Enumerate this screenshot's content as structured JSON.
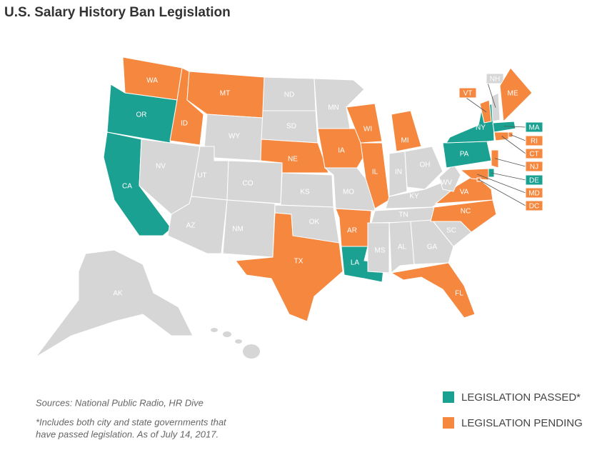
{
  "title": "U.S. Salary History Ban Legislation",
  "map": {
    "states": [
      {
        "label": "WA",
        "color": "#f5873f"
      },
      {
        "label": "OR",
        "color": "#1aa192"
      },
      {
        "label": "CA",
        "color": "#1aa192"
      },
      {
        "label": "ID",
        "color": "#f5873f"
      },
      {
        "label": "NV",
        "color": "#d6d6d6"
      },
      {
        "label": "MT",
        "color": "#f5873f"
      },
      {
        "label": "WY",
        "color": "#d6d6d6"
      },
      {
        "label": "UT",
        "color": "#d6d6d6"
      },
      {
        "label": "CO",
        "color": "#d6d6d6"
      },
      {
        "label": "AZ",
        "color": "#d6d6d6"
      },
      {
        "label": "NM",
        "color": "#d6d6d6"
      },
      {
        "label": "ND",
        "color": "#d6d6d6"
      },
      {
        "label": "SD",
        "color": "#d6d6d6"
      },
      {
        "label": "NE",
        "color": "#f5873f"
      },
      {
        "label": "KS",
        "color": "#d6d6d6"
      },
      {
        "label": "OK",
        "color": "#d6d6d6"
      },
      {
        "label": "TX",
        "color": "#f5873f"
      },
      {
        "label": "MN",
        "color": "#d6d6d6"
      },
      {
        "label": "IA",
        "color": "#f5873f"
      },
      {
        "label": "MO",
        "color": "#d6d6d6"
      },
      {
        "label": "AR",
        "color": "#f5873f"
      },
      {
        "label": "LA",
        "color": "#1aa192"
      },
      {
        "label": "WI",
        "color": "#f5873f"
      },
      {
        "label": "IL",
        "color": "#f5873f"
      },
      {
        "label": "MI",
        "color": "#f5873f"
      },
      {
        "label": "IN",
        "color": "#d6d6d6"
      },
      {
        "label": "OH",
        "color": "#d6d6d6"
      },
      {
        "label": "KY",
        "color": "#d6d6d6"
      },
      {
        "label": "TN",
        "color": "#d6d6d6"
      },
      {
        "label": "MS",
        "color": "#d6d6d6"
      },
      {
        "label": "AL",
        "color": "#d6d6d6"
      },
      {
        "label": "GA",
        "color": "#d6d6d6"
      },
      {
        "label": "SC",
        "color": "#d6d6d6"
      },
      {
        "label": "FL",
        "color": "#f5873f"
      },
      {
        "label": "NC",
        "color": "#f5873f"
      },
      {
        "label": "VA",
        "color": "#f5873f"
      },
      {
        "label": "WV",
        "color": "#d6d6d6"
      },
      {
        "label": "PA",
        "color": "#1aa192"
      },
      {
        "label": "NY",
        "color": "#1aa192"
      },
      {
        "label": "VT",
        "color": "#f5873f"
      },
      {
        "label": "NH",
        "color": "#d6d6d6"
      },
      {
        "label": "ME",
        "color": "#f5873f"
      },
      {
        "label": "MA",
        "color": "#1aa192"
      },
      {
        "label": "RI",
        "color": "#f5873f"
      },
      {
        "label": "CT",
        "color": "#f5873f"
      },
      {
        "label": "NJ",
        "color": "#f5873f"
      },
      {
        "label": "DE",
        "color": "#1aa192"
      },
      {
        "label": "MD",
        "color": "#f5873f"
      },
      {
        "label": "DC",
        "color": "#f5873f"
      },
      {
        "label": "AK",
        "color": "#d6d6d6"
      }
    ]
  },
  "sources": "Sources: National Public Radio, HR Dive",
  "footnote": [
    "*Includes both city and state governments that",
    "have passed legislation. As of July 14, 2017."
  ],
  "legend": [
    {
      "label": "LEGISLATION PASSED*",
      "color": "#1aa192"
    },
    {
      "label": "LEGISLATION PENDING",
      "color": "#f5873f"
    }
  ]
}
